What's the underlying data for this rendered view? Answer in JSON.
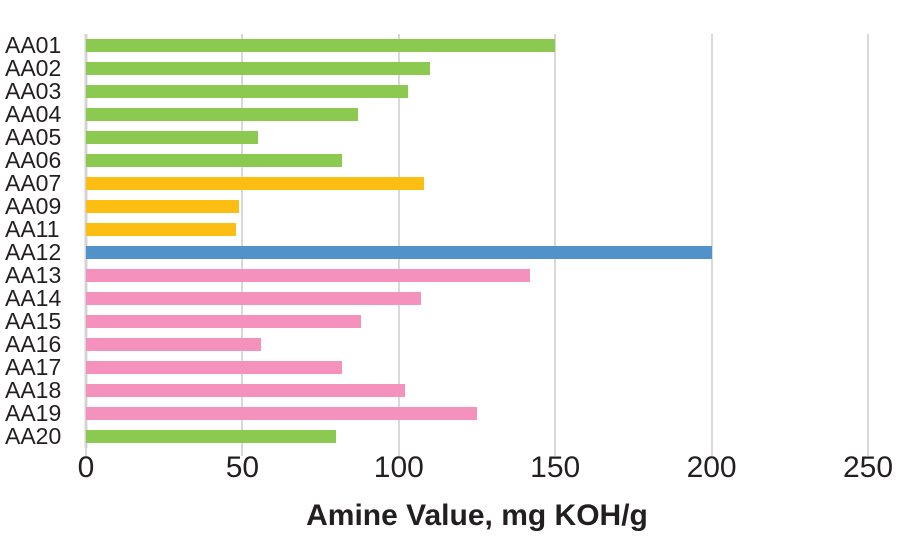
{
  "chart_data": {
    "type": "bar",
    "orientation": "horizontal",
    "title": "",
    "xlabel": "Amine Value, mg KOH/g",
    "ylabel": "",
    "xlim": [
      0,
      250
    ],
    "xticks": [
      0,
      50,
      100,
      150,
      200,
      250
    ],
    "grid": "vertical",
    "legend": "none",
    "categories": [
      "AA01",
      "AA02",
      "AA03",
      "AA04",
      "AA05",
      "AA06",
      "AA07",
      "AA09",
      "AA11",
      "AA12",
      "AA13",
      "AA14",
      "AA15",
      "AA16",
      "AA17",
      "AA18",
      "AA19",
      "AA20"
    ],
    "values": [
      150,
      110,
      103,
      87,
      55,
      82,
      108,
      49,
      48,
      200,
      142,
      107,
      88,
      56,
      82,
      102,
      125,
      80
    ],
    "bar_color_keys": [
      "green",
      "green",
      "green",
      "green",
      "green",
      "green",
      "amber",
      "amber",
      "amber",
      "blue",
      "pink",
      "pink",
      "pink",
      "pink",
      "pink",
      "pink",
      "pink",
      "green"
    ],
    "colors": {
      "green": "#8bc950",
      "amber": "#fcbe12",
      "blue": "#5292cb",
      "pink": "#f491bd"
    }
  },
  "styles": {
    "gridline_color": "#d9d9d9",
    "text_color": "#231f20",
    "background": "#ffffff"
  }
}
